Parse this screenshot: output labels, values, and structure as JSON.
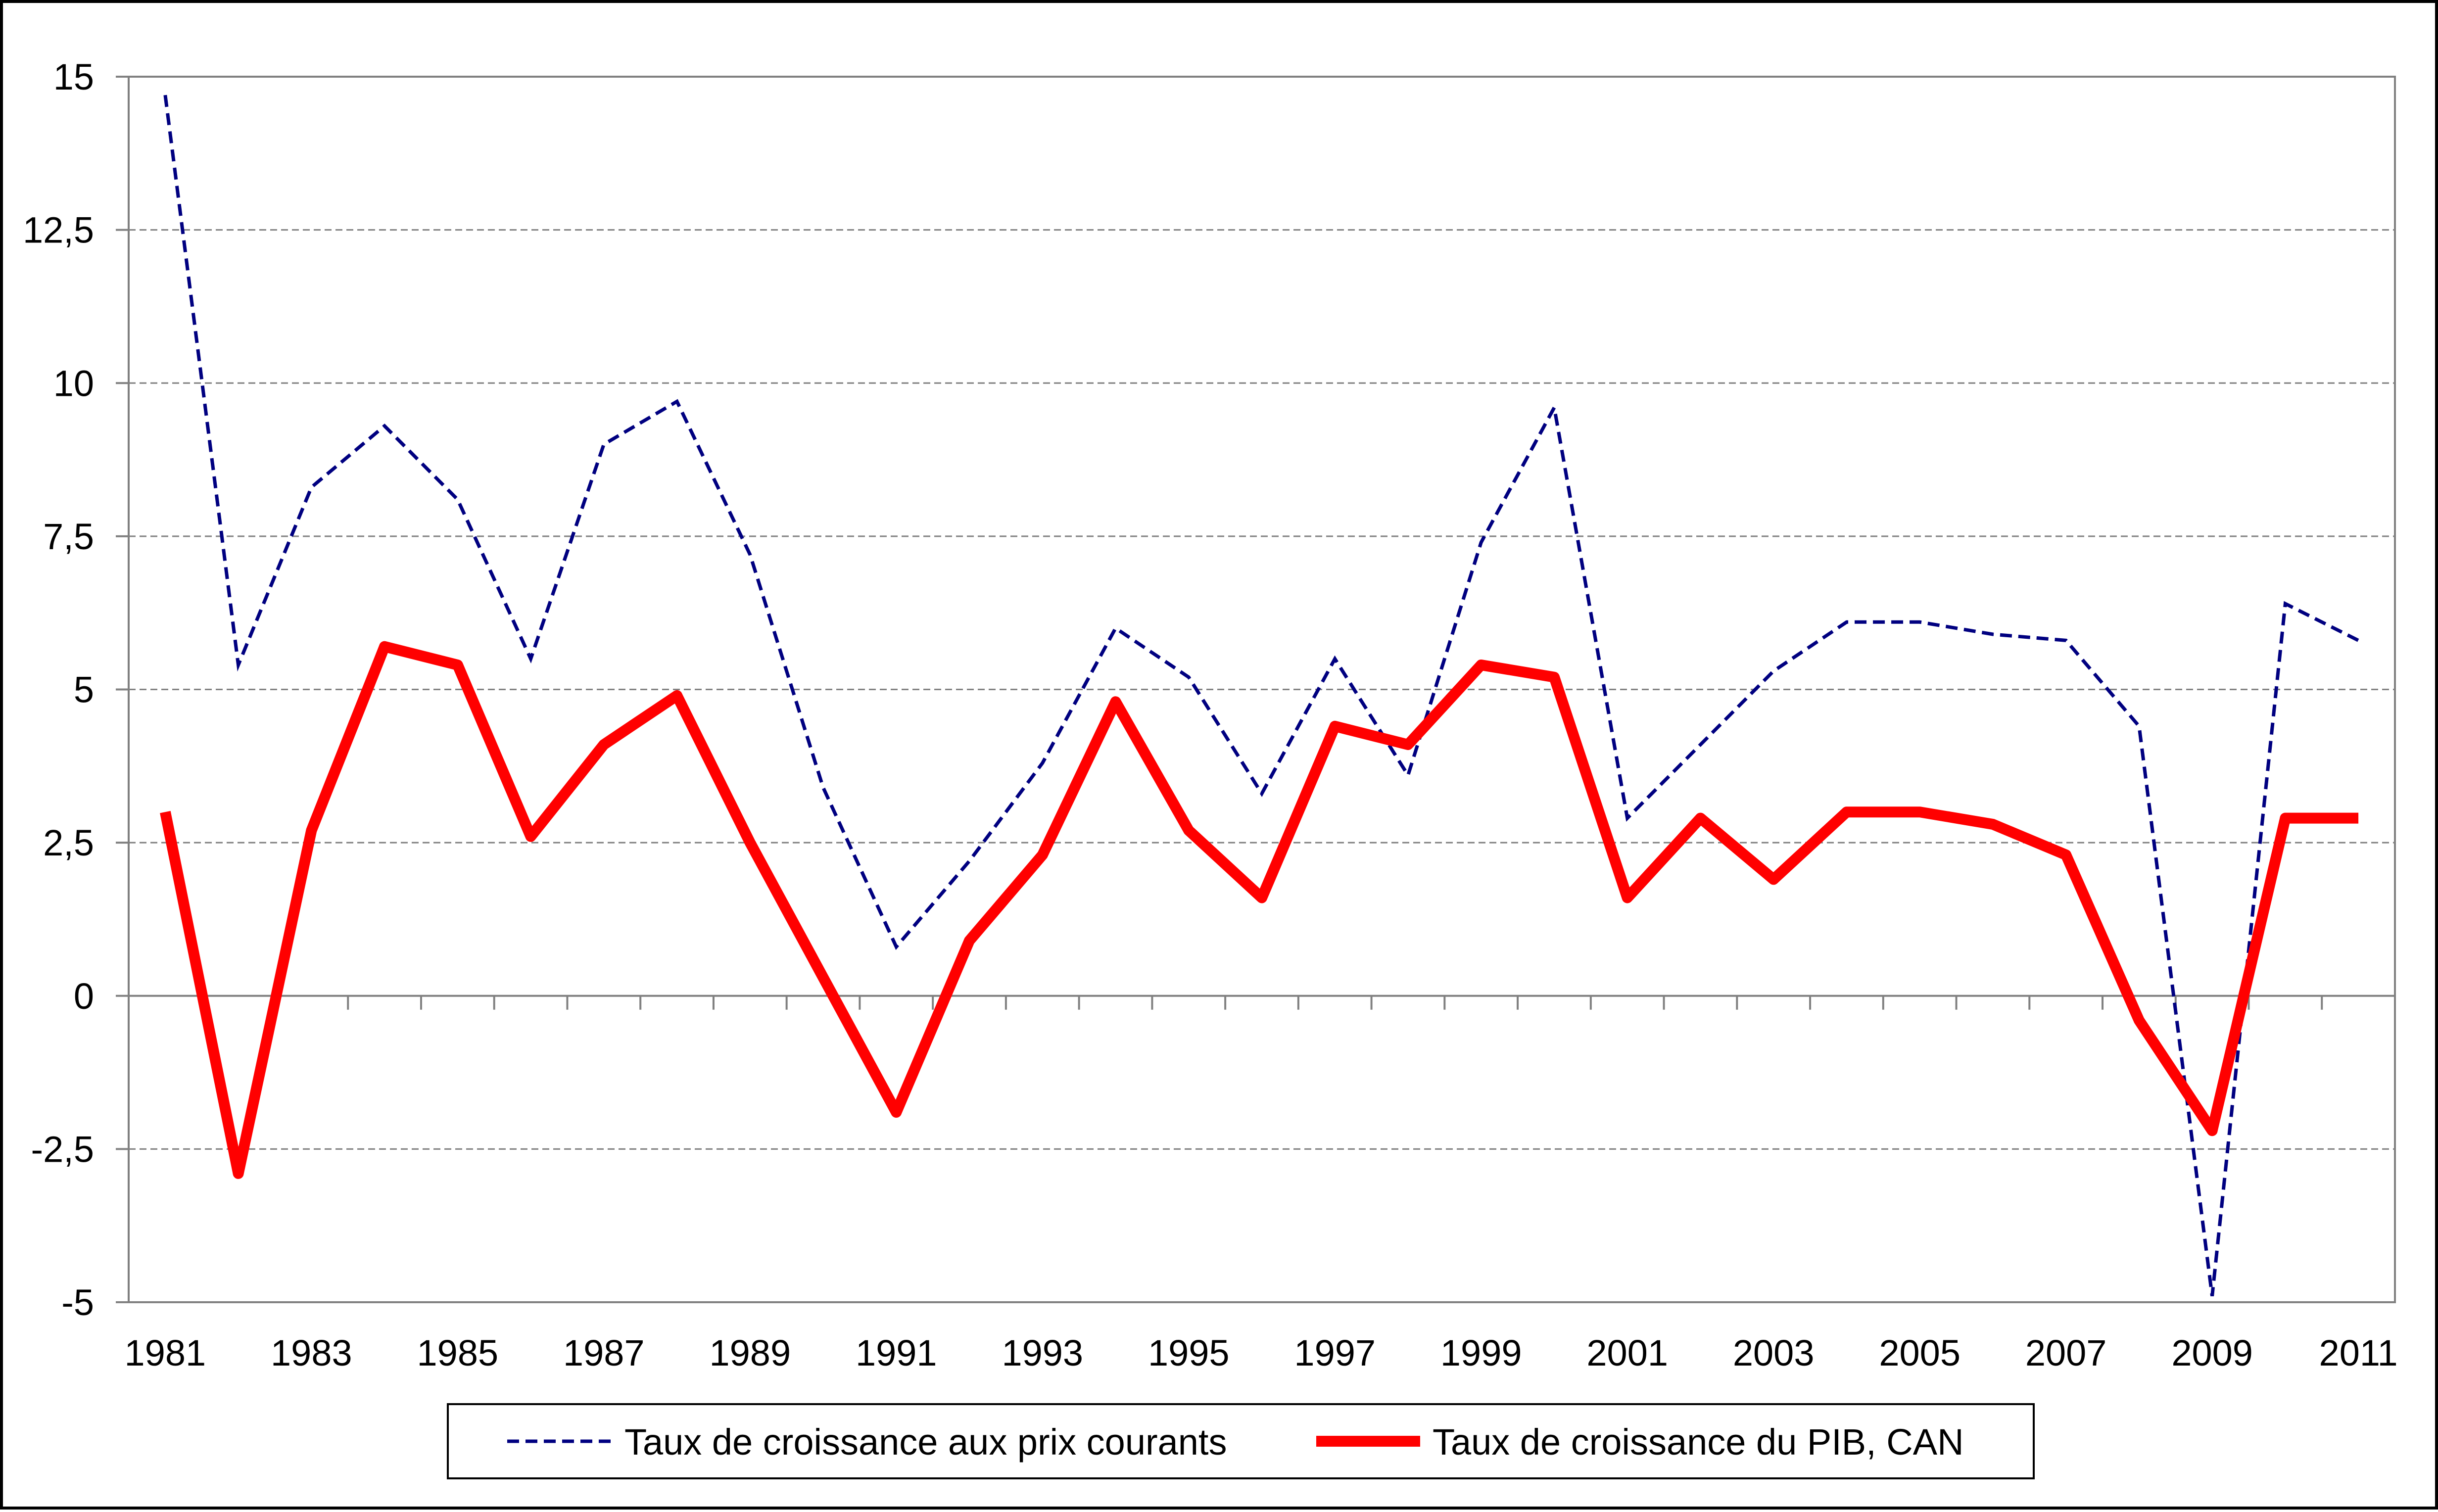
{
  "chart_data": {
    "type": "line",
    "title": "",
    "xlabel": "",
    "ylabel": "",
    "x": [
      1981,
      1982,
      1983,
      1984,
      1985,
      1986,
      1987,
      1988,
      1989,
      1990,
      1991,
      1992,
      1993,
      1994,
      1995,
      1996,
      1997,
      1998,
      1999,
      2000,
      2001,
      2002,
      2003,
      2004,
      2005,
      2006,
      2007,
      2008,
      2009,
      2010,
      2011
    ],
    "x_tick_labels": [
      "1981",
      "1983",
      "1985",
      "1987",
      "1989",
      "1991",
      "1993",
      "1995",
      "1997",
      "1999",
      "2001",
      "2003",
      "2005",
      "2007",
      "2009",
      "2011"
    ],
    "y_tick_labels": [
      "15",
      "12,5",
      "10",
      "7,5",
      "5",
      "2,5",
      "0",
      "-2,5",
      "-5"
    ],
    "ylim": [
      -5,
      15
    ],
    "grid": "horizontal dashed",
    "legend_position": "bottom",
    "series": [
      {
        "name": "Taux de croissance aux prix courants",
        "color": "#000080",
        "style": "dashed",
        "values": [
          14.7,
          5.4,
          8.3,
          9.3,
          8.1,
          5.5,
          9.0,
          9.7,
          7.2,
          3.4,
          0.8,
          2.2,
          3.8,
          6.0,
          5.2,
          3.3,
          5.5,
          3.6,
          7.4,
          9.6,
          2.9,
          4.1,
          5.3,
          6.1,
          6.1,
          5.9,
          5.8,
          4.4,
          -4.9,
          6.4,
          5.8
        ]
      },
      {
        "name": "Taux de croissance du PIB, CAN",
        "color": "#ff0000",
        "style": "solid",
        "values": [
          3.0,
          -2.9,
          2.7,
          5.7,
          5.4,
          2.6,
          4.1,
          4.9,
          2.5,
          0.3,
          -1.9,
          0.9,
          2.3,
          4.8,
          2.7,
          1.6,
          4.4,
          4.1,
          5.4,
          5.2,
          1.6,
          2.9,
          1.9,
          3.0,
          3.0,
          2.8,
          2.3,
          -0.4,
          -2.2,
          2.9,
          2.9
        ]
      }
    ]
  }
}
